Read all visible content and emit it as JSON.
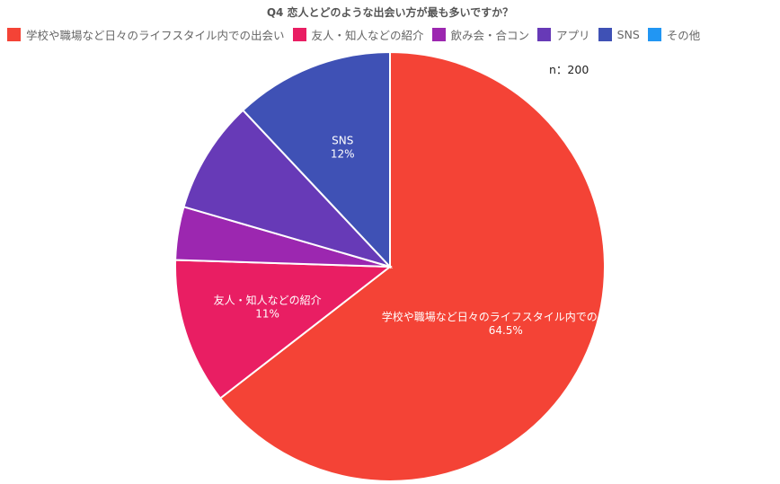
{
  "chart_data": {
    "type": "pie",
    "title": "Q4 恋人とどのような出会い方が最も多いですか？",
    "sample_size_label": "n：200",
    "categories": [
      "学校や職場など日々のライフスタイル内での出会い",
      "友人・知人などの紹介",
      "飲み会・合コン",
      "アプリ",
      "SNS",
      "その他"
    ],
    "values": [
      64.5,
      11,
      4,
      8.5,
      12,
      0
    ],
    "slice_labels": [
      {
        "name": "学校や職場など日々のライフスタイル内での出会い",
        "value": "64.5%"
      },
      {
        "name": "友人・知人などの紹介",
        "value": "11%"
      },
      {
        "name": "",
        "value": ""
      },
      {
        "name": "",
        "value": ""
      },
      {
        "name": "SNS",
        "value": "12%"
      },
      {
        "name": "",
        "value": ""
      }
    ],
    "colors": [
      "#f44336",
      "#e91e63",
      "#9c27b0",
      "#673ab7",
      "#3f51b5",
      "#2196f3"
    ],
    "legend_position": "top"
  }
}
